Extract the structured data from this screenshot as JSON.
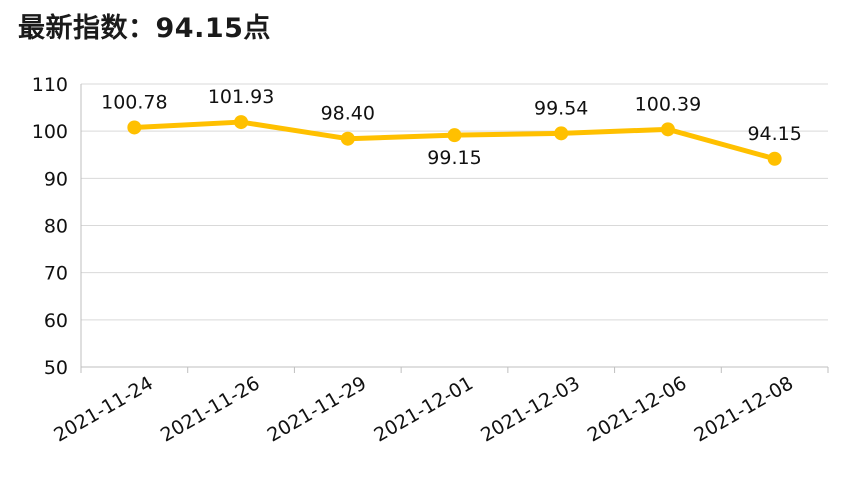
{
  "header": {
    "title": "最新指数：94.15点"
  },
  "colors": {
    "series": "#FFC000",
    "grid": "#D9D9D9",
    "axis": "#BFBFBF",
    "text": "#111111"
  },
  "chart_data": {
    "type": "line",
    "title": "最新指数：94.15点",
    "xlabel": "",
    "ylabel": "",
    "categories": [
      "2021-11-24",
      "2021-11-26",
      "2021-11-29",
      "2021-12-01",
      "2021-12-03",
      "2021-12-06",
      "2021-12-08"
    ],
    "series": [
      {
        "values": [
          100.78,
          101.93,
          98.4,
          99.15,
          99.54,
          100.39,
          94.15
        ]
      }
    ],
    "data_labels": [
      "100.78",
      "101.93",
      "98.40",
      "99.15",
      "99.54",
      "100.39",
      "94.15"
    ],
    "ylim": [
      50,
      110
    ],
    "yticks": [
      50,
      60,
      70,
      80,
      90,
      100,
      110
    ],
    "grid": true,
    "legend": "none"
  }
}
